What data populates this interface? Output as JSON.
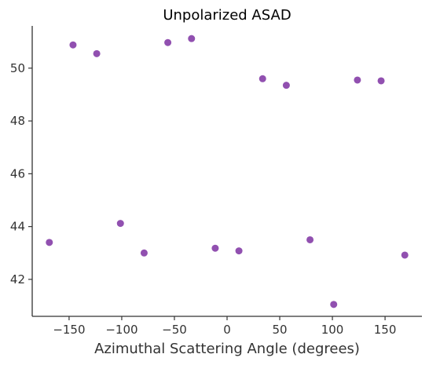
{
  "chart_data": {
    "type": "scatter",
    "title": "Unpolarized ASAD",
    "xlabel": "Azimuthal Scattering Angle (degrees)",
    "ylabel": "",
    "xlim": [
      -185,
      185
    ],
    "ylim": [
      40.6,
      51.6
    ],
    "xticks": [
      -150,
      -100,
      -50,
      0,
      50,
      100,
      150
    ],
    "yticks": [
      42,
      44,
      46,
      48,
      50
    ],
    "grid": false,
    "marker_color": "#9150b0",
    "points": [
      {
        "x": -168.75,
        "y": 43.4
      },
      {
        "x": -146.25,
        "y": 50.88
      },
      {
        "x": -123.75,
        "y": 50.55
      },
      {
        "x": -101.25,
        "y": 44.12
      },
      {
        "x": -78.75,
        "y": 43.0
      },
      {
        "x": -56.25,
        "y": 50.97
      },
      {
        "x": -33.75,
        "y": 51.12
      },
      {
        "x": -11.25,
        "y": 43.18
      },
      {
        "x": 11.25,
        "y": 43.08
      },
      {
        "x": 33.75,
        "y": 49.6
      },
      {
        "x": 56.25,
        "y": 49.35
      },
      {
        "x": 78.75,
        "y": 43.5
      },
      {
        "x": 101.25,
        "y": 41.05
      },
      {
        "x": 123.75,
        "y": 49.55
      },
      {
        "x": 146.25,
        "y": 49.52
      },
      {
        "x": 168.75,
        "y": 42.92
      }
    ]
  }
}
